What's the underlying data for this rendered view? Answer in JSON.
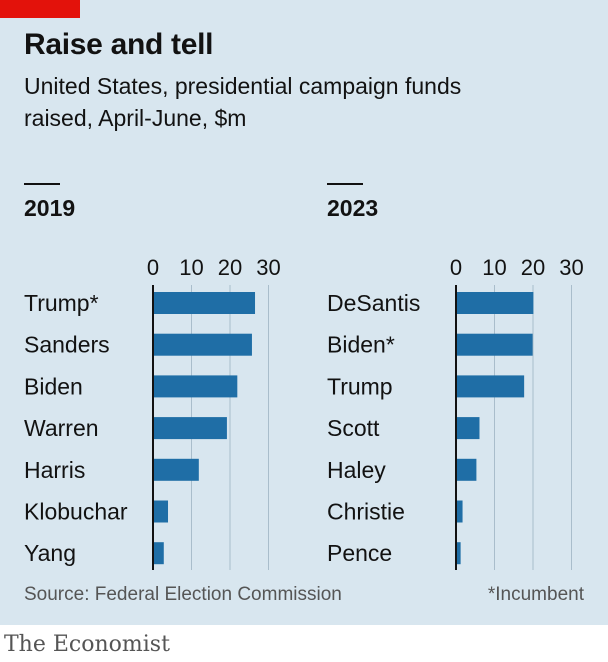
{
  "header": {
    "title": "Raise and tell",
    "subtitle": "United States, presidential campaign funds raised, April-June, $m"
  },
  "chart_data": [
    {
      "type": "bar",
      "orientation": "horizontal",
      "title": "2019",
      "categories": [
        "Trump*",
        "Sanders",
        "Biden",
        "Warren",
        "Harris",
        "Klobuchar",
        "Yang"
      ],
      "values": [
        26.5,
        25.7,
        21.9,
        19.2,
        11.9,
        3.9,
        2.8
      ],
      "xlim": [
        0,
        30
      ],
      "xticks": [
        "0",
        "10",
        "20",
        "30"
      ],
      "grid": true,
      "color": "#1f6ea6"
    },
    {
      "type": "bar",
      "orientation": "horizontal",
      "title": "2023",
      "categories": [
        "DeSantis",
        "Biden*",
        "Trump",
        "Scott",
        "Haley",
        "Christie",
        "Pence"
      ],
      "values": [
        20.1,
        19.9,
        17.7,
        6.1,
        5.3,
        1.7,
        1.2
      ],
      "xlim": [
        0,
        30
      ],
      "xticks": [
        "0",
        "10",
        "20",
        "30"
      ],
      "grid": true,
      "color": "#1f6ea6"
    }
  ],
  "footer": {
    "source": "Source: Federal Election Commission",
    "note": "*Incumbent",
    "brand": "The Economist"
  }
}
